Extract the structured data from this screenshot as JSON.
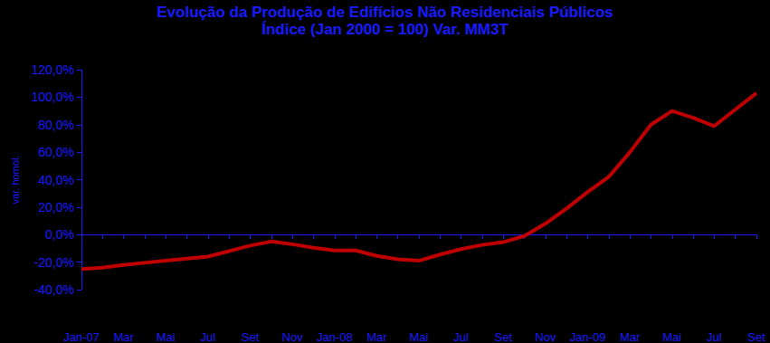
{
  "chart_data": {
    "type": "line",
    "title": "Evolução da Produção de Edifícios Não Residenciais Públicos",
    "subtitle": "Índice (Jan 2000 = 100) Var. MM3T",
    "y_label": "var. homol.",
    "categories": [
      "Jan-07",
      null,
      "Mar",
      null,
      "Mai",
      null,
      "Jul",
      null,
      "Set",
      null,
      "Nov",
      null,
      "Jan-08",
      null,
      "Mar",
      null,
      "Mai",
      null,
      "Jul",
      null,
      "Set",
      null,
      "Nov",
      null,
      "Jan-09",
      null,
      "Mar",
      null,
      "Mai",
      null,
      "Jul",
      null,
      "Set"
    ],
    "values": [
      -25,
      -24,
      -22,
      -20.5,
      -19,
      -17.5,
      -16,
      -12,
      -8,
      -5,
      -7,
      -9.5,
      -11.5,
      -11.5,
      -15.5,
      -18,
      -19,
      -14.5,
      -10.5,
      -7.5,
      -5.5,
      -1,
      8,
      19,
      31,
      42,
      60,
      80,
      90,
      85,
      79,
      91,
      103
    ],
    "color": "#c00000",
    "ylim": [
      -40,
      120
    ],
    "yticks": [
      {
        "value": -40,
        "label": "-40,0%"
      },
      {
        "value": -20,
        "label": "-20,0%"
      },
      {
        "value": 0,
        "label": "0,0%"
      },
      {
        "value": 20,
        "label": "20,0%"
      },
      {
        "value": 40,
        "label": "40,0%"
      },
      {
        "value": 60,
        "label": "60,0%"
      },
      {
        "value": 80,
        "label": "80,0%"
      },
      {
        "value": 100,
        "label": "100,0%"
      },
      {
        "value": 120,
        "label": "120,0%"
      }
    ],
    "grid": false
  }
}
